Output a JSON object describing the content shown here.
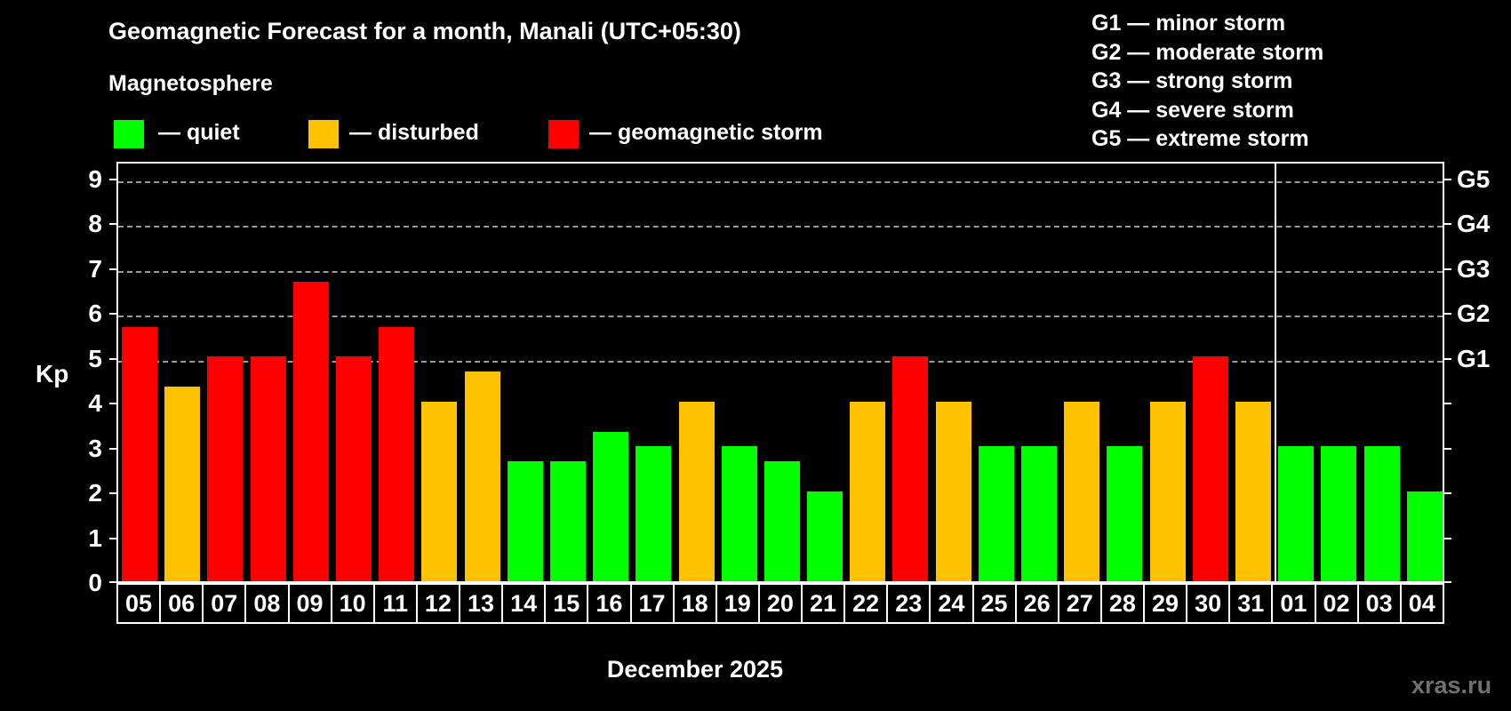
{
  "header": {
    "title": "Geomagnetic Forecast for a month, Manali (UTC+05:30)",
    "subtitle": "Magnetosphere"
  },
  "legend": {
    "quiet": {
      "label": "— quiet",
      "color": "#00ff00"
    },
    "disturbed": {
      "label": "— disturbed",
      "color": "#ffc200"
    },
    "storm": {
      "label": "— geomagnetic storm",
      "color": "#ff0000"
    }
  },
  "g_legend": {
    "items": [
      "G1 — minor storm",
      "G2 — moderate storm",
      "G3 — strong storm",
      "G4 — severe storm",
      "G5 — extreme storm"
    ]
  },
  "watermark": "xras.ru",
  "chart_data": {
    "type": "bar",
    "title": "Geomagnetic Forecast for a month, Manali (UTC+05:30)",
    "ylabel": "Kp",
    "xlabel": "December 2025",
    "month_label": "December 2025",
    "ylim": [
      0,
      9.4
    ],
    "yticks": [
      0,
      1,
      2,
      3,
      4,
      5,
      6,
      7,
      8,
      9
    ],
    "gridline_values": [
      5,
      6,
      7,
      8,
      9
    ],
    "grid_style": "horizontal dashed gray at storm levels only",
    "right_axis": [
      {
        "label": "G1",
        "value": 5
      },
      {
        "label": "G2",
        "value": 6
      },
      {
        "label": "G3",
        "value": 7
      },
      {
        "label": "G4",
        "value": 8
      },
      {
        "label": "G5",
        "value": 9
      }
    ],
    "categories": [
      "05",
      "06",
      "07",
      "08",
      "09",
      "10",
      "11",
      "12",
      "13",
      "14",
      "15",
      "16",
      "17",
      "18",
      "19",
      "20",
      "21",
      "22",
      "23",
      "24",
      "25",
      "26",
      "27",
      "28",
      "29",
      "30",
      "31",
      "01",
      "02",
      "03",
      "04"
    ],
    "values": [
      5.67,
      4.33,
      5,
      5,
      6.67,
      5,
      5.67,
      4,
      4.67,
      2.67,
      2.67,
      3.33,
      3,
      4,
      3,
      2.67,
      2,
      4,
      5,
      4,
      3,
      3,
      4,
      3,
      4,
      5,
      4,
      3,
      3,
      3,
      2
    ],
    "statuses": [
      "storm",
      "disturbed",
      "storm",
      "storm",
      "storm",
      "storm",
      "storm",
      "disturbed",
      "disturbed",
      "quiet",
      "quiet",
      "quiet",
      "quiet",
      "disturbed",
      "quiet",
      "quiet",
      "quiet",
      "disturbed",
      "storm",
      "disturbed",
      "quiet",
      "quiet",
      "disturbed",
      "quiet",
      "disturbed",
      "storm",
      "disturbed",
      "quiet",
      "quiet",
      "quiet",
      "quiet"
    ],
    "separator_after_index": 26,
    "legend_position": "top-left",
    "background": "#000000"
  }
}
